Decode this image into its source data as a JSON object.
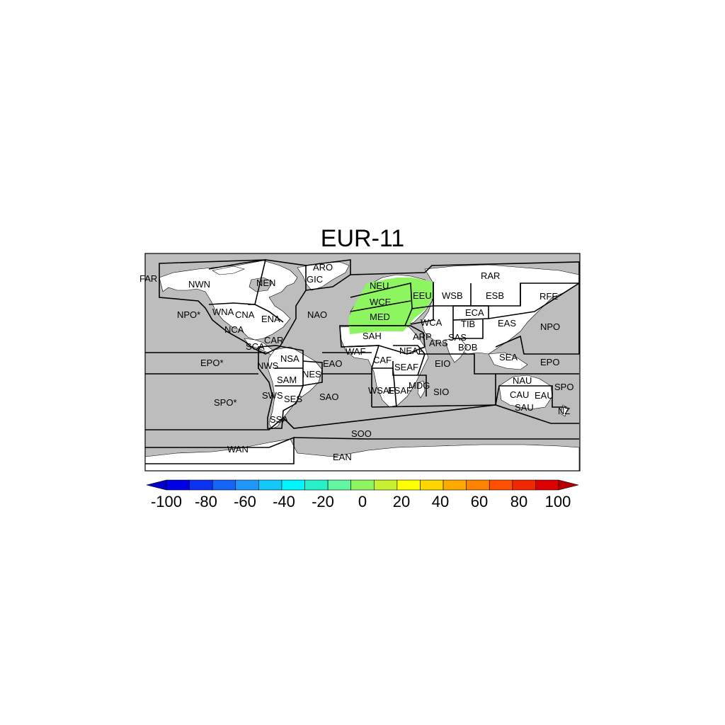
{
  "title": "EUR-11",
  "colors": {
    "ocean": "#bdbdbd",
    "land": "#ffffff",
    "highlight": "#8cf560",
    "border": "#000000"
  },
  "regions": [
    "FAR",
    "NWN",
    "NEN",
    "ARO",
    "GIC",
    "NEU",
    "RAR",
    "WSB",
    "ESB",
    "RFE",
    "EEU",
    "WCE",
    "MED",
    "NPO*",
    "WNA",
    "CNA",
    "ENA",
    "NAO",
    "ECA",
    "EAS",
    "NPO",
    "WCA",
    "TIB",
    "SAH",
    "ARP",
    "SAS",
    "NCA",
    "SCA",
    "CAR",
    "WAF",
    "NEAF",
    "ARS",
    "BOB",
    "SEA",
    "EPO*",
    "NWS",
    "NSA",
    "EAO",
    "CAF",
    "SEAF",
    "EIO",
    "EPO",
    "NES",
    "SAM",
    "NAU",
    "SPO",
    "SWS",
    "SES",
    "SAO",
    "WSAF",
    "ESAF",
    "MDG",
    "SIO",
    "CAU",
    "EAU",
    "SPO*",
    "SAU",
    "NZ",
    "SSA",
    "SOO",
    "WAN",
    "EAN"
  ],
  "colorbar": {
    "tick_labels": [
      "-100",
      "-80",
      "-60",
      "-40",
      "-20",
      "0",
      "20",
      "40",
      "60",
      "80",
      "100"
    ],
    "colors": [
      "#0000c8",
      "#0000e6",
      "#0a32f0",
      "#1464f5",
      "#1e96fa",
      "#14c8fa",
      "#00f5ff",
      "#28f0c8",
      "#64f5a0",
      "#8cf560",
      "#c8f032",
      "#ffff00",
      "#ffd700",
      "#ffaa00",
      "#ff8200",
      "#ff5000",
      "#f02800",
      "#dc0000",
      "#b40000"
    ]
  }
}
